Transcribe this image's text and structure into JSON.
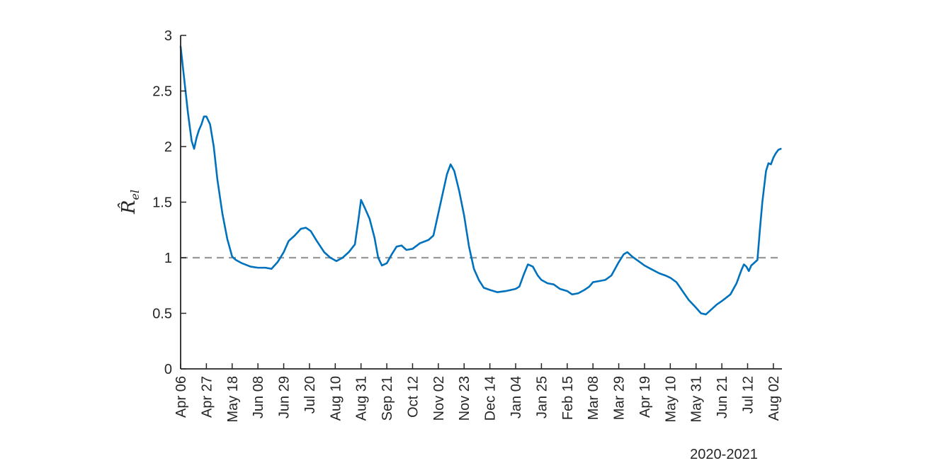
{
  "chart_data": {
    "type": "line",
    "title": "",
    "ylabel": "R̂el",
    "ylabel_main": "R̂",
    "ylabel_sub": "el",
    "xfooter": "2020-2021",
    "ylim": [
      0,
      3
    ],
    "yticks": [
      0,
      0.5,
      1,
      1.5,
      2,
      2.5,
      3
    ],
    "ytick_labels": [
      "0",
      "0.5",
      "1",
      "1.5",
      "2",
      "2.5",
      "3"
    ],
    "xlim": [
      "2020-04-06",
      "2021-08-09"
    ],
    "xticks": [
      "2020-04-06",
      "2020-04-27",
      "2020-05-18",
      "2020-06-08",
      "2020-06-29",
      "2020-07-20",
      "2020-08-10",
      "2020-08-31",
      "2020-09-21",
      "2020-10-12",
      "2020-11-02",
      "2020-11-23",
      "2020-12-14",
      "2021-01-04",
      "2021-01-25",
      "2021-02-15",
      "2021-03-08",
      "2021-03-29",
      "2021-04-19",
      "2021-05-10",
      "2021-05-31",
      "2021-06-21",
      "2021-07-12",
      "2021-08-02"
    ],
    "xtick_labels": [
      "Apr 06",
      "Apr 27",
      "May 18",
      "Jun 08",
      "Jun 29",
      "Jul 20",
      "Aug 10",
      "Aug 31",
      "Sep 21",
      "Oct 12",
      "Nov 02",
      "Nov 23",
      "Dec 14",
      "Jan 04",
      "Jan 25",
      "Feb 15",
      "Mar 08",
      "Mar 29",
      "Apr 19",
      "May 10",
      "May 31",
      "Jun 21",
      "Jul 12",
      "Aug 02"
    ],
    "reference_line": {
      "y": 1,
      "style": "dashed",
      "color": "#999999"
    },
    "grid": false,
    "colors": {
      "series": "#0072BD",
      "axis": "#262626"
    },
    "series": [
      {
        "x": [
          "2020-04-06",
          "2020-04-09",
          "2020-04-12",
          "2020-04-15",
          "2020-04-17",
          "2020-04-19",
          "2020-04-21",
          "2020-04-23",
          "2020-04-25",
          "2020-04-27",
          "2020-04-30",
          "2020-05-03",
          "2020-05-06",
          "2020-05-10",
          "2020-05-14",
          "2020-05-18",
          "2020-05-21",
          "2020-05-26",
          "2020-06-02",
          "2020-06-08",
          "2020-06-14",
          "2020-06-19",
          "2020-06-24",
          "2020-06-29",
          "2020-07-03",
          "2020-07-08",
          "2020-07-13",
          "2020-07-17",
          "2020-07-21",
          "2020-07-26",
          "2020-08-01",
          "2020-08-06",
          "2020-08-11",
          "2020-08-16",
          "2020-08-21",
          "2020-08-26",
          "2020-08-29",
          "2020-08-31",
          "2020-09-03",
          "2020-09-07",
          "2020-09-11",
          "2020-09-14",
          "2020-09-17",
          "2020-09-21",
          "2020-09-25",
          "2020-09-29",
          "2020-10-03",
          "2020-10-07",
          "2020-10-12",
          "2020-10-18",
          "2020-10-25",
          "2020-10-29",
          "2020-11-01",
          "2020-11-05",
          "2020-11-09",
          "2020-11-12",
          "2020-11-15",
          "2020-11-19",
          "2020-11-23",
          "2020-11-27",
          "2020-12-01",
          "2020-12-05",
          "2020-12-09",
          "2020-12-14",
          "2020-12-20",
          "2020-12-27",
          "2021-01-04",
          "2021-01-07",
          "2021-01-11",
          "2021-01-14",
          "2021-01-18",
          "2021-01-22",
          "2021-01-25",
          "2021-01-30",
          "2021-02-04",
          "2021-02-09",
          "2021-02-15",
          "2021-02-19",
          "2021-02-24",
          "2021-03-01",
          "2021-03-05",
          "2021-03-08",
          "2021-03-13",
          "2021-03-18",
          "2021-03-23",
          "2021-03-29",
          "2021-04-02",
          "2021-04-05",
          "2021-04-09",
          "2021-04-14",
          "2021-04-19",
          "2021-04-24",
          "2021-05-01",
          "2021-05-06",
          "2021-05-10",
          "2021-05-15",
          "2021-05-20",
          "2021-05-25",
          "2021-05-31",
          "2021-06-04",
          "2021-06-08",
          "2021-06-12",
          "2021-06-17",
          "2021-06-21",
          "2021-06-28",
          "2021-07-03",
          "2021-07-07",
          "2021-07-09",
          "2021-07-11",
          "2021-07-13",
          "2021-07-15",
          "2021-07-17",
          "2021-07-20",
          "2021-07-22",
          "2021-07-24",
          "2021-07-27",
          "2021-07-29",
          "2021-07-31",
          "2021-08-02",
          "2021-08-04",
          "2021-08-06",
          "2021-08-08"
        ],
        "y": [
          2.9,
          2.6,
          2.3,
          2.05,
          1.98,
          2.08,
          2.15,
          2.2,
          2.27,
          2.27,
          2.2,
          2.0,
          1.7,
          1.4,
          1.17,
          1.01,
          0.98,
          0.95,
          0.92,
          0.91,
          0.91,
          0.9,
          0.96,
          1.05,
          1.15,
          1.2,
          1.26,
          1.27,
          1.24,
          1.15,
          1.05,
          1.0,
          0.97,
          1.0,
          1.05,
          1.12,
          1.35,
          1.52,
          1.45,
          1.35,
          1.18,
          1.0,
          0.93,
          0.95,
          1.03,
          1.1,
          1.11,
          1.07,
          1.08,
          1.13,
          1.16,
          1.2,
          1.35,
          1.55,
          1.75,
          1.84,
          1.78,
          1.6,
          1.38,
          1.1,
          0.9,
          0.8,
          0.73,
          0.71,
          0.69,
          0.7,
          0.72,
          0.74,
          0.86,
          0.94,
          0.92,
          0.84,
          0.8,
          0.77,
          0.76,
          0.72,
          0.7,
          0.67,
          0.68,
          0.71,
          0.74,
          0.78,
          0.79,
          0.8,
          0.84,
          0.96,
          1.03,
          1.05,
          1.01,
          0.97,
          0.93,
          0.9,
          0.86,
          0.84,
          0.82,
          0.78,
          0.7,
          0.62,
          0.55,
          0.5,
          0.49,
          0.53,
          0.58,
          0.61,
          0.67,
          0.77,
          0.89,
          0.94,
          0.92,
          0.88,
          0.93,
          0.95,
          0.98,
          1.25,
          1.5,
          1.78,
          1.85,
          1.84,
          1.9,
          1.94,
          1.97,
          1.98
        ]
      }
    ]
  }
}
